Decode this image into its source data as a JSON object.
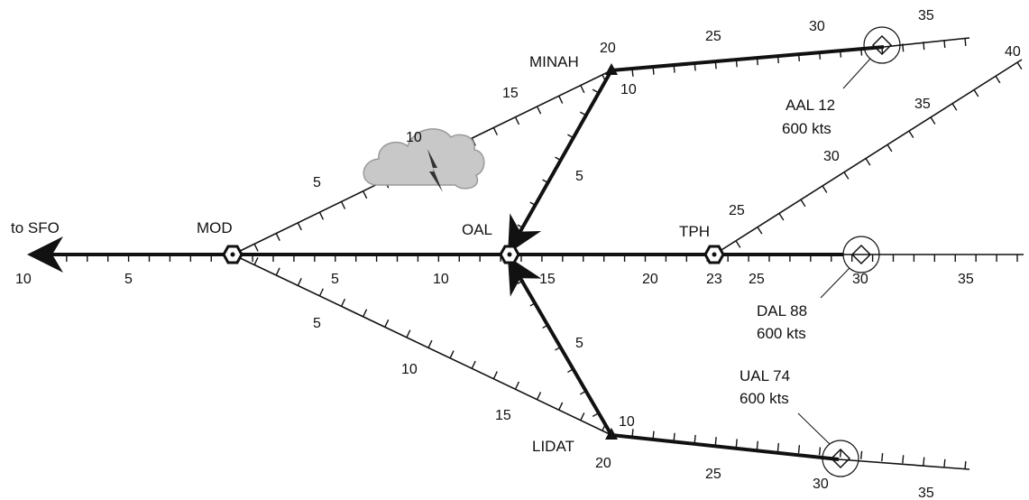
{
  "labels": {
    "to_sfo": "to SFO",
    "mod": "MOD",
    "oal": "OAL",
    "tph": "TPH",
    "minah": "MINAH",
    "lidat": "LIDAT"
  },
  "aircraft": {
    "aal": {
      "callsign": "AAL 12",
      "speed": "600 kts"
    },
    "dal": {
      "callsign": "DAL 88",
      "speed": "600 kts"
    },
    "ual": {
      "callsign": "UAL 74",
      "speed": "600 kts"
    }
  },
  "numbers": {
    "main": [
      "10",
      "5",
      "5",
      "10",
      "15",
      "20",
      "23",
      "25",
      "30",
      "35"
    ],
    "upper_mod": [
      "5",
      "10",
      "15"
    ],
    "minah_top": [
      "20",
      "25",
      "30",
      "35"
    ],
    "minah_oal": [
      "10",
      "5"
    ],
    "tph_diag": [
      "25",
      "30",
      "35",
      "40"
    ],
    "lower_mod": [
      "5",
      "10",
      "15"
    ],
    "lidat_oal": [
      "5",
      "10"
    ],
    "lidat_bottom": [
      "20",
      "25",
      "30",
      "35"
    ]
  },
  "colors": {
    "line": "#111111",
    "cloud": "#c8c8c8",
    "cloud_edge": "#9a9a9a"
  },
  "icons": {
    "waypoint": "hexagon-waypoint-icon",
    "fix": "triangle-fix-icon",
    "aircraft": "diamond-aircraft-icon",
    "weather": "thunderstorm-cloud-icon"
  }
}
